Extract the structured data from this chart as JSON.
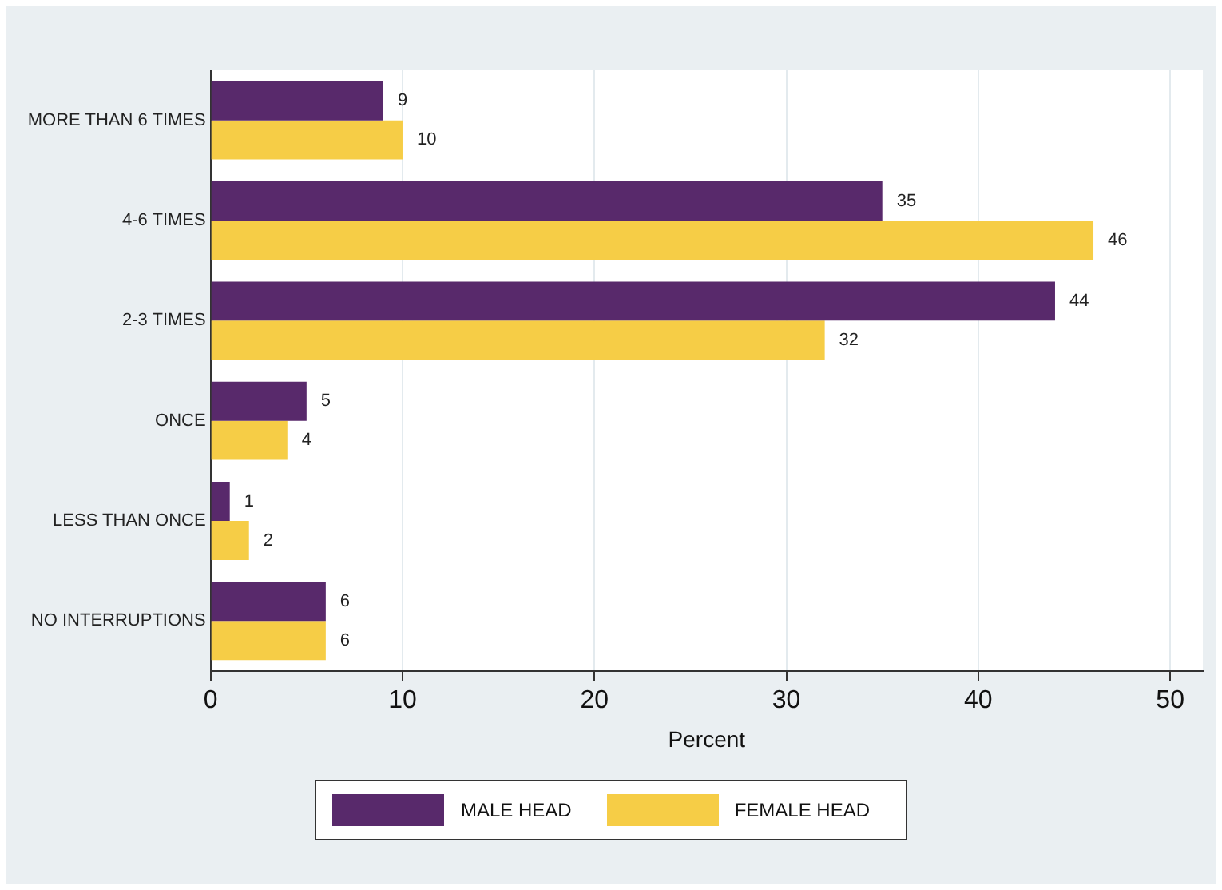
{
  "chart_data": {
    "type": "bar",
    "orientation": "horizontal",
    "xlabel": "Percent",
    "categories": [
      "MORE THAN 6 TIMES",
      "4-6 TIMES",
      "2-3 TIMES",
      "ONCE",
      "LESS THAN ONCE",
      "NO INTERRUPTIONS"
    ],
    "series": [
      {
        "name": "MALE HEAD",
        "color": "#58296b",
        "values": [
          9,
          35,
          44,
          5,
          1,
          6
        ]
      },
      {
        "name": "FEMALE HEAD",
        "color": "#f6cd46",
        "values": [
          10,
          46,
          32,
          4,
          2,
          6
        ]
      }
    ],
    "xlim": [
      0,
      51.7
    ],
    "xticks": [
      0,
      10,
      20,
      30,
      40,
      50
    ],
    "grid": "x",
    "legend": "bottom",
    "data_labels": true
  }
}
